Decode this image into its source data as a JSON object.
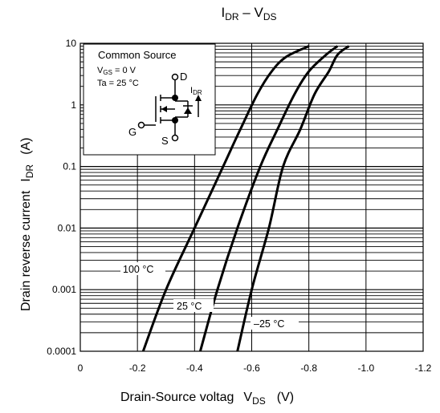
{
  "chart_data": {
    "type": "line",
    "title": {
      "main": "I",
      "main_sub": "DR",
      "sep": " – ",
      "second": "V",
      "second_sub": "DS"
    },
    "xlabel": {
      "text": "Drain-Source voltag",
      "sym": "V",
      "sym_sub": "DS",
      "unit": "(V)"
    },
    "ylabel": {
      "text": "Drain reverse current",
      "sym": "I",
      "sym_sub": "DR",
      "unit": "(A)"
    },
    "x_ticks": [
      "0",
      "-0.2",
      "-0.4",
      "-0.6",
      "-0.8",
      "-1.0",
      "-1.2"
    ],
    "y_ticks": [
      "0.0001",
      "0.001",
      "0.01",
      "0.1",
      "1",
      "10"
    ],
    "xlim": [
      0,
      -1.2
    ],
    "ylim": [
      0.0001,
      10
    ],
    "y_scale": "log",
    "grid": true,
    "series": [
      {
        "name": "100 °C",
        "x": [
          -0.22,
          -0.3,
          -0.4,
          -0.5,
          -0.56,
          -0.62,
          -0.67,
          -0.72,
          -0.8
        ],
        "y": [
          0.0001,
          0.001,
          0.01,
          0.1,
          0.4,
          1.5,
          3.5,
          6.0,
          9.0
        ]
      },
      {
        "name": "25 °C",
        "x": [
          -0.42,
          -0.48,
          -0.55,
          -0.63,
          -0.69,
          -0.75,
          -0.8,
          -0.86,
          -0.9
        ],
        "y": [
          0.0001,
          0.001,
          0.01,
          0.1,
          0.4,
          1.5,
          3.5,
          6.5,
          9.0
        ]
      },
      {
        "name": "–25 °C",
        "x": [
          -0.55,
          -0.6,
          -0.66,
          -0.71,
          -0.77,
          -0.82,
          -0.87,
          -0.9,
          -0.94
        ],
        "y": [
          0.0001,
          0.001,
          0.01,
          0.1,
          0.4,
          1.5,
          3.5,
          6.5,
          9.0
        ]
      }
    ],
    "inset": {
      "title": "Common Source",
      "line1_a": "V",
      "line1_sub": "GS",
      "line1_b": " = 0 V",
      "line2": "Ta = 25 °C",
      "pin_d": "D",
      "pin_g": "G",
      "pin_s": "S",
      "cur": "I",
      "cur_sub": "DR"
    }
  }
}
